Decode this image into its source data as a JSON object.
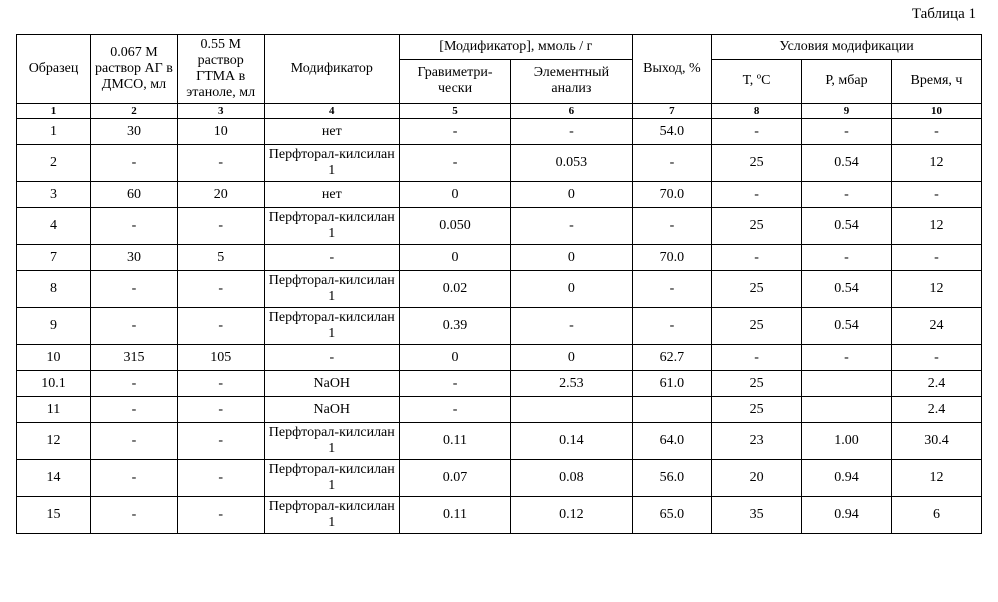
{
  "caption": "Таблица 1",
  "headers": {
    "sample": "Образец",
    "solAG": "0.067 М раствор АГ в ДМСО, мл",
    "solGTMA": "0.55 М раствор ГТМА в этаноле, мл",
    "modifier": "Модификатор",
    "modConcGroup": "[Модификатор], ммоль / г",
    "grav": "Гравиметри-чески",
    "elem": "Элементный анализ",
    "yield": "Выход, %",
    "condGroup": "Условия модификации",
    "tempC": "Т, ºС",
    "pmbar": "Р, мбар",
    "timeH": "Время, ч"
  },
  "colnums": [
    "1",
    "2",
    "3",
    "4",
    "5",
    "6",
    "7",
    "8",
    "9",
    "10"
  ],
  "rows": [
    {
      "sample": "1",
      "ag": "30",
      "gtma": "10",
      "mod": "нет",
      "grav": "-",
      "elem": "-",
      "yield": "54.0",
      "t": "-",
      "p": "-",
      "time": "-",
      "short": true
    },
    {
      "sample": "2",
      "ag": "-",
      "gtma": "-",
      "mod": "Перфторал-килсилан 1",
      "grav": "-",
      "elem": "0.053",
      "yield": "-",
      "t": "25",
      "p": "0.54",
      "time": "12"
    },
    {
      "sample": "3",
      "ag": "60",
      "gtma": "20",
      "mod": "нет",
      "grav": "0",
      "elem": "0",
      "yield": "70.0",
      "t": "-",
      "p": "-",
      "time": "-",
      "short": true
    },
    {
      "sample": "4",
      "ag": "-",
      "gtma": "-",
      "mod": "Перфторал-килсилан 1",
      "grav": "0.050",
      "elem": "-",
      "yield": "-",
      "t": "25",
      "p": "0.54",
      "time": "12"
    },
    {
      "sample": "7",
      "ag": "30",
      "gtma": "5",
      "mod": "-",
      "grav": "0",
      "elem": "0",
      "yield": "70.0",
      "t": "-",
      "p": "-",
      "time": "-",
      "short": true
    },
    {
      "sample": "8",
      "ag": "-",
      "gtma": "-",
      "mod": "Перфторал-килсилан 1",
      "grav": "0.02",
      "elem": "0",
      "yield": "-",
      "t": "25",
      "p": "0.54",
      "time": "12"
    },
    {
      "sample": "9",
      "ag": "-",
      "gtma": "-",
      "mod": "Перфторал-килсилан 1",
      "grav": "0.39",
      "elem": "-",
      "yield": "-",
      "t": "25",
      "p": "0.54",
      "time": "24"
    },
    {
      "sample": "10",
      "ag": "315",
      "gtma": "105",
      "mod": "-",
      "grav": "0",
      "elem": "0",
      "yield": "62.7",
      "t": "-",
      "p": "-",
      "time": "-",
      "short": true
    },
    {
      "sample": "10.1",
      "ag": "-",
      "gtma": "-",
      "mod": "NaOH",
      "grav": "-",
      "elem": "2.53",
      "yield": "61.0",
      "t": "25",
      "p": "",
      "time": "2.4",
      "short": true
    },
    {
      "sample": "11",
      "ag": "-",
      "gtma": "-",
      "mod": "NaOH",
      "grav": "-",
      "elem": "",
      "yield": "",
      "t": "25",
      "p": "",
      "time": "2.4",
      "short": true
    },
    {
      "sample": "12",
      "ag": "-",
      "gtma": "-",
      "mod": "Перфторал-килсилан 1",
      "grav": "0.11",
      "elem": "0.14",
      "yield": "64.0",
      "t": "23",
      "p": "1.00",
      "time": "30.4"
    },
    {
      "sample": "14",
      "ag": "-",
      "gtma": "-",
      "mod": "Перфторал-килсилан 1",
      "grav": "0.07",
      "elem": "0.08",
      "yield": "56.0",
      "t": "20",
      "p": "0.94",
      "time": "12"
    },
    {
      "sample": "15",
      "ag": "-",
      "gtma": "-",
      "mod": "Перфторал-килсилан 1",
      "grav": "0.11",
      "elem": "0.12",
      "yield": "65.0",
      "t": "35",
      "p": "0.94",
      "time": "6"
    }
  ]
}
